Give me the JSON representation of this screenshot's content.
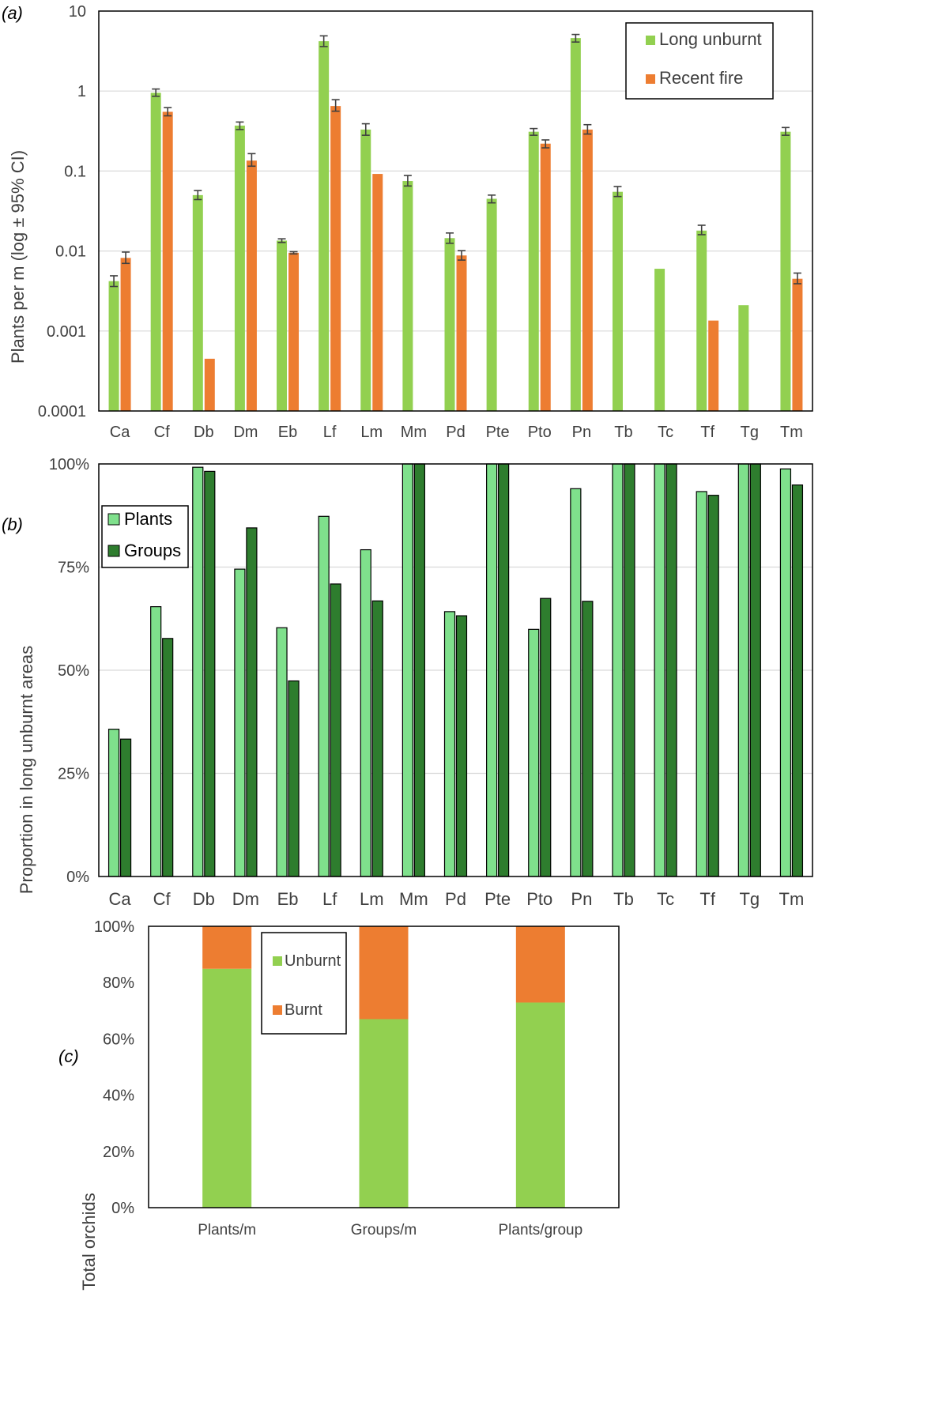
{
  "panel_labels": {
    "a": "(a)",
    "b": "(b)",
    "c": "(c)"
  },
  "colors": {
    "long_unburnt": "#92d050",
    "recent_fire": "#ed7d31",
    "plants": "#7fe08c",
    "groups": "#2e7d2e",
    "unburnt": "#92d050",
    "burnt": "#ed7d31",
    "grid": "#d9d9d9",
    "axis": "#000000",
    "errorbar": "#404040"
  },
  "chart_data": [
    {
      "id": "a",
      "type": "bar",
      "scale": "log",
      "title": "",
      "ylabel": "Plants per m (log ± 95% CI)",
      "xlabel": "",
      "ylim": [
        0.0001,
        10
      ],
      "ticks": [
        0.0001,
        0.001,
        0.01,
        0.1,
        1,
        10
      ],
      "tick_labels": [
        "0.0001",
        "0.001",
        "0.01",
        "0.1",
        "1",
        "10"
      ],
      "legend_position": "top-right",
      "categories": [
        "Ca",
        "Cf",
        "Db",
        "Dm",
        "Eb",
        "Lf",
        "Lm",
        "Mm",
        "Pd",
        "Pte",
        "Pto",
        "Pn",
        "Tb",
        "Tc",
        "Tf",
        "Tg",
        "Tm"
      ],
      "series": [
        {
          "name": "Long unburnt",
          "color_key": "long_unburnt",
          "values": [
            0.0042,
            0.95,
            0.05,
            0.37,
            0.0135,
            4.2,
            0.33,
            0.075,
            0.0145,
            0.045,
            0.31,
            4.6,
            0.055,
            0.006,
            0.018,
            0.0021,
            0.31
          ],
          "ci_low": [
            0.0036,
            0.86,
            0.044,
            0.33,
            0.0128,
            3.6,
            0.28,
            0.065,
            0.0125,
            0.04,
            0.28,
            4.1,
            0.048,
            null,
            0.016,
            null,
            0.28
          ],
          "ci_high": [
            0.0049,
            1.06,
            0.057,
            0.41,
            0.0142,
            4.9,
            0.39,
            0.088,
            0.0168,
            0.05,
            0.34,
            5.1,
            0.064,
            null,
            0.021,
            null,
            0.35
          ]
        },
        {
          "name": "Recent fire",
          "color_key": "recent_fire",
          "values": [
            0.0082,
            0.55,
            0.00045,
            0.135,
            0.0095,
            0.65,
            0.092,
            null,
            0.0088,
            null,
            0.22,
            0.33,
            null,
            null,
            0.00135,
            null,
            0.0045
          ],
          "ci_low": [
            0.007,
            0.49,
            null,
            0.115,
            0.0092,
            0.56,
            null,
            null,
            0.0077,
            null,
            0.195,
            0.29,
            null,
            null,
            null,
            null,
            0.0039
          ],
          "ci_high": [
            0.0097,
            0.62,
            null,
            0.165,
            0.0098,
            0.78,
            null,
            null,
            0.0101,
            null,
            0.245,
            0.38,
            null,
            null,
            null,
            null,
            0.0053
          ]
        }
      ]
    },
    {
      "id": "b",
      "type": "bar",
      "title": "",
      "ylabel": "Proportion in long unburnt areas",
      "xlabel": "",
      "ylim": [
        0,
        100
      ],
      "ticks": [
        0,
        25,
        50,
        75,
        100
      ],
      "tick_labels": [
        "0%",
        "25%",
        "50%",
        "75%",
        "100%"
      ],
      "legend_position": "top-left",
      "categories": [
        "Ca",
        "Cf",
        "Db",
        "Dm",
        "Eb",
        "Lf",
        "Lm",
        "Mm",
        "Pd",
        "Pte",
        "Pto",
        "Pn",
        "Tb",
        "Tc",
        "Tf",
        "Tg",
        "Tm"
      ],
      "series": [
        {
          "name": "Plants",
          "color_key": "plants",
          "values": [
            35.7,
            65.4,
            99.2,
            74.5,
            60.3,
            87.3,
            79.2,
            100,
            64.2,
            100,
            59.9,
            94.0,
            100,
            100,
            93.3,
            100,
            98.8
          ]
        },
        {
          "name": "Groups",
          "color_key": "groups",
          "values": [
            33.3,
            57.7,
            98.2,
            84.5,
            47.4,
            70.9,
            66.8,
            100,
            63.2,
            100,
            67.4,
            66.7,
            100,
            100,
            92.4,
            100,
            94.9
          ]
        }
      ]
    },
    {
      "id": "c",
      "type": "bar",
      "stacked": true,
      "title": "",
      "ylabel": "Total orchids",
      "xlabel": "",
      "ylim": [
        0,
        100
      ],
      "ticks": [
        0,
        20,
        40,
        60,
        80,
        100
      ],
      "tick_labels": [
        "0%",
        "20%",
        "40%",
        "60%",
        "80%",
        "100%"
      ],
      "legend_position": "top-center",
      "categories": [
        "Plants/m",
        "Groups/m",
        "Plants/group"
      ],
      "series": [
        {
          "name": "Unburnt",
          "color_key": "unburnt",
          "values": [
            84.9,
            67.0,
            72.9
          ]
        },
        {
          "name": "Burnt",
          "color_key": "burnt",
          "values": [
            15.1,
            33.0,
            27.1
          ]
        }
      ]
    }
  ]
}
